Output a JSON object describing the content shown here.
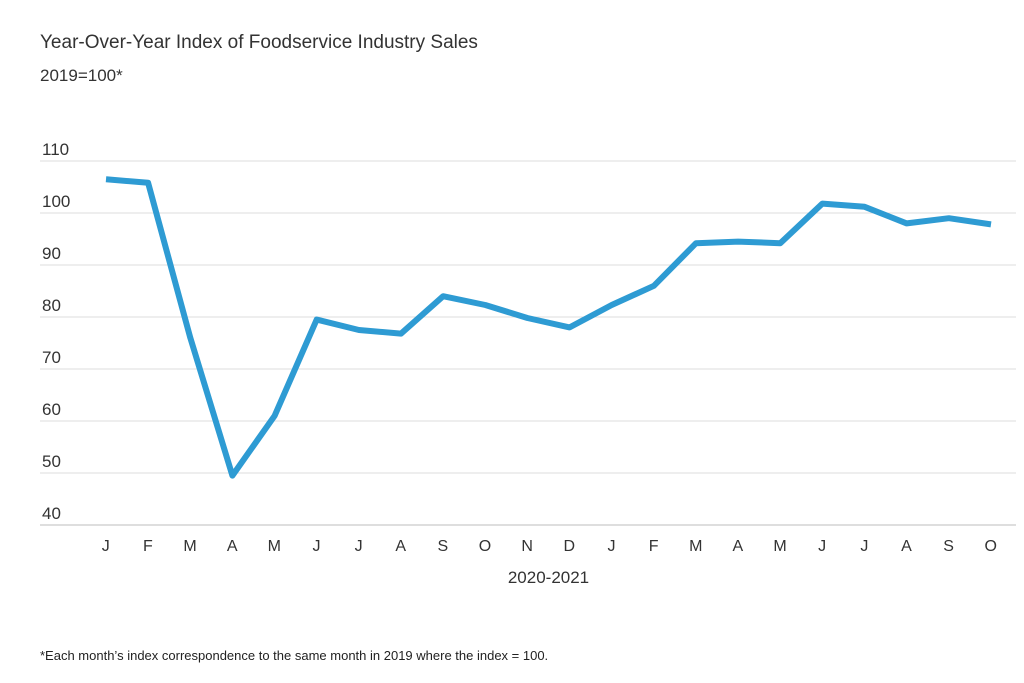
{
  "chart_data": {
    "type": "line",
    "title": "Year-Over-Year Index of Foodservice Industry Sales",
    "subtitle": "2019=100*",
    "xlabel": "2020-2021",
    "ylabel": "",
    "categories": [
      "J",
      "F",
      "M",
      "A",
      "M",
      "J",
      "J",
      "A",
      "S",
      "O",
      "N",
      "D",
      "J",
      "F",
      "M",
      "A",
      "M",
      "J",
      "J",
      "A",
      "S",
      "O"
    ],
    "yticks": [
      40,
      50,
      60,
      70,
      80,
      90,
      100,
      110
    ],
    "ylim": [
      40,
      110
    ],
    "grid": true,
    "line_color": "#2e9bd3",
    "series": [
      {
        "name": "Index",
        "values": [
          106.5,
          105.8,
          76,
          49.5,
          61,
          79.5,
          77.5,
          76.8,
          84,
          82.3,
          79.8,
          78,
          82.3,
          86,
          94.2,
          94.5,
          94.2,
          101.8,
          101.2,
          98,
          99,
          97.8
        ]
      }
    ],
    "footnote": "*Each month’s index correspondence to the same month in 2019 where the index = 100."
  }
}
